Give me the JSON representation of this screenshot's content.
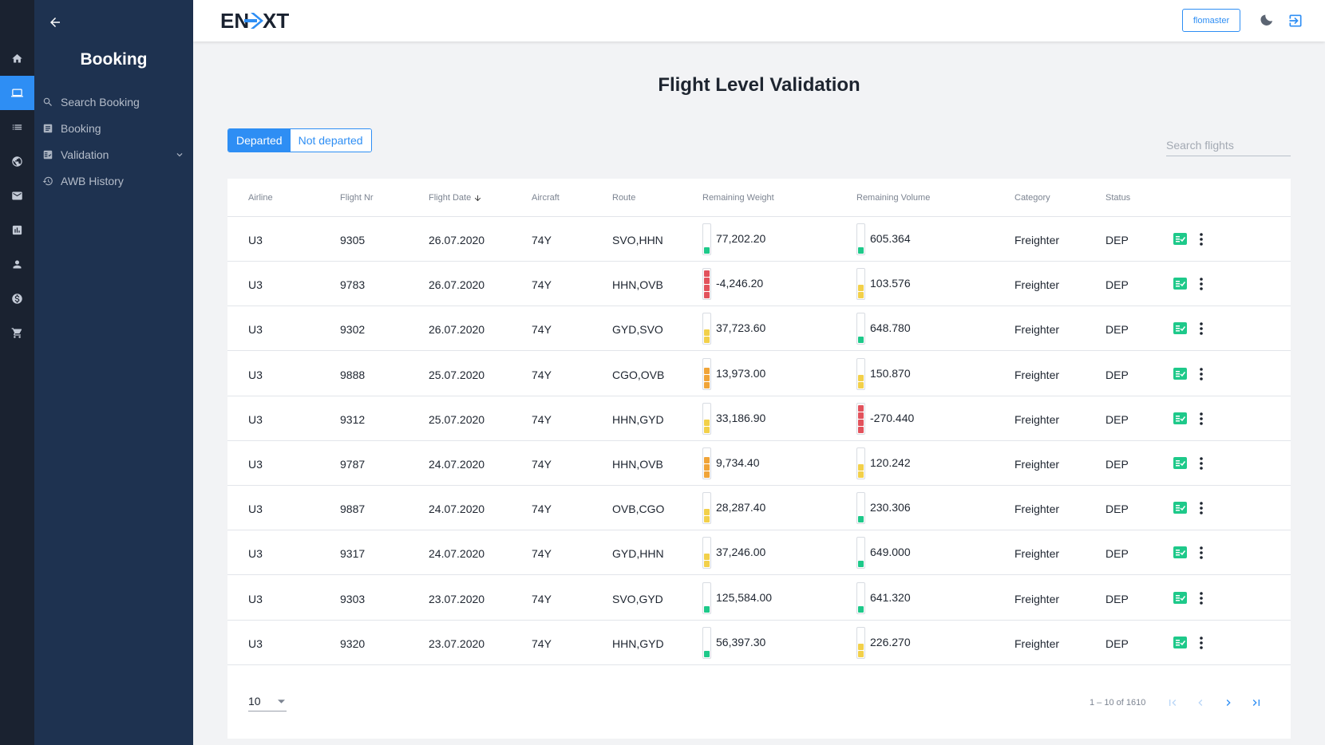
{
  "colors": {
    "green": "#1ec98a",
    "yellow": "#f2d04a",
    "orange": "#f0a438",
    "red": "#e2525c",
    "accent": "#2e8ef4"
  },
  "rail": [
    "home-icon",
    "laptop-icon",
    "list-icon",
    "globe-icon",
    "mail-icon",
    "chart-icon",
    "person-icon",
    "dollar-icon",
    "cart-icon"
  ],
  "sidebar": {
    "title": "Booking",
    "items": [
      {
        "label": "Search Booking",
        "icon": "search-icon"
      },
      {
        "label": "Booking",
        "icon": "document-icon"
      },
      {
        "label": "Validation",
        "icon": "checklist-icon"
      },
      {
        "label": "AWB History",
        "icon": "history-icon"
      }
    ]
  },
  "header": {
    "logo": "ENXT",
    "user": "flomaster"
  },
  "page": {
    "title": "Flight Level Validation"
  },
  "toggle": {
    "departed": "Departed",
    "not_departed": "Not departed"
  },
  "search": {
    "placeholder": "Search flights"
  },
  "table": {
    "columns": [
      "Airline",
      "Flight Nr",
      "Flight Date",
      "Aircraft",
      "Route",
      "Remaining Weight",
      "Remaining Volume",
      "Category",
      "Status"
    ],
    "rows": [
      {
        "airline": "U3",
        "flight_nr": "9305",
        "date": "26.07.2020",
        "aircraft": "74Y",
        "route": "SVO,HHN",
        "weight": "77,202.20",
        "weight_level": {
          "segments": 1,
          "color": "green"
        },
        "volume": "605.364",
        "volume_level": {
          "segments": 1,
          "color": "green"
        },
        "category": "Freighter",
        "status": "DEP"
      },
      {
        "airline": "U3",
        "flight_nr": "9783",
        "date": "26.07.2020",
        "aircraft": "74Y",
        "route": "HHN,OVB",
        "weight": "-4,246.20",
        "weight_level": {
          "segments": 4,
          "color": "red"
        },
        "volume": "103.576",
        "volume_level": {
          "segments": 2,
          "color": "yellow"
        },
        "category": "Freighter",
        "status": "DEP"
      },
      {
        "airline": "U3",
        "flight_nr": "9302",
        "date": "26.07.2020",
        "aircraft": "74Y",
        "route": "GYD,SVO",
        "weight": "37,723.60",
        "weight_level": {
          "segments": 2,
          "color": "yellow"
        },
        "volume": "648.780",
        "volume_level": {
          "segments": 1,
          "color": "green"
        },
        "category": "Freighter",
        "status": "DEP"
      },
      {
        "airline": "U3",
        "flight_nr": "9888",
        "date": "25.07.2020",
        "aircraft": "74Y",
        "route": "CGO,OVB",
        "weight": "13,973.00",
        "weight_level": {
          "segments": 3,
          "color": "orange"
        },
        "volume": "150.870",
        "volume_level": {
          "segments": 2,
          "color": "yellow"
        },
        "category": "Freighter",
        "status": "DEP"
      },
      {
        "airline": "U3",
        "flight_nr": "9312",
        "date": "25.07.2020",
        "aircraft": "74Y",
        "route": "HHN,GYD",
        "weight": "33,186.90",
        "weight_level": {
          "segments": 2,
          "color": "yellow"
        },
        "volume": "-270.440",
        "volume_level": {
          "segments": 4,
          "color": "red"
        },
        "category": "Freighter",
        "status": "DEP"
      },
      {
        "airline": "U3",
        "flight_nr": "9787",
        "date": "24.07.2020",
        "aircraft": "74Y",
        "route": "HHN,OVB",
        "weight": "9,734.40",
        "weight_level": {
          "segments": 3,
          "color": "orange"
        },
        "volume": "120.242",
        "volume_level": {
          "segments": 2,
          "color": "yellow"
        },
        "category": "Freighter",
        "status": "DEP"
      },
      {
        "airline": "U3",
        "flight_nr": "9887",
        "date": "24.07.2020",
        "aircraft": "74Y",
        "route": "OVB,CGO",
        "weight": "28,287.40",
        "weight_level": {
          "segments": 2,
          "color": "yellow"
        },
        "volume": "230.306",
        "volume_level": {
          "segments": 1,
          "color": "green"
        },
        "category": "Freighter",
        "status": "DEP"
      },
      {
        "airline": "U3",
        "flight_nr": "9317",
        "date": "24.07.2020",
        "aircraft": "74Y",
        "route": "GYD,HHN",
        "weight": "37,246.00",
        "weight_level": {
          "segments": 2,
          "color": "yellow"
        },
        "volume": "649.000",
        "volume_level": {
          "segments": 1,
          "color": "green"
        },
        "category": "Freighter",
        "status": "DEP"
      },
      {
        "airline": "U3",
        "flight_nr": "9303",
        "date": "23.07.2020",
        "aircraft": "74Y",
        "route": "SVO,GYD",
        "weight": "125,584.00",
        "weight_level": {
          "segments": 1,
          "color": "green"
        },
        "volume": "641.320",
        "volume_level": {
          "segments": 1,
          "color": "green"
        },
        "category": "Freighter",
        "status": "DEP"
      },
      {
        "airline": "U3",
        "flight_nr": "9320",
        "date": "23.07.2020",
        "aircraft": "74Y",
        "route": "HHN,GYD",
        "weight": "56,397.30",
        "weight_level": {
          "segments": 1,
          "color": "green"
        },
        "volume": "226.270",
        "volume_level": {
          "segments": 2,
          "color": "yellow"
        },
        "category": "Freighter",
        "status": "DEP"
      }
    ]
  },
  "pagination": {
    "page_size": "10",
    "range": "1 – 10 of 1610"
  }
}
